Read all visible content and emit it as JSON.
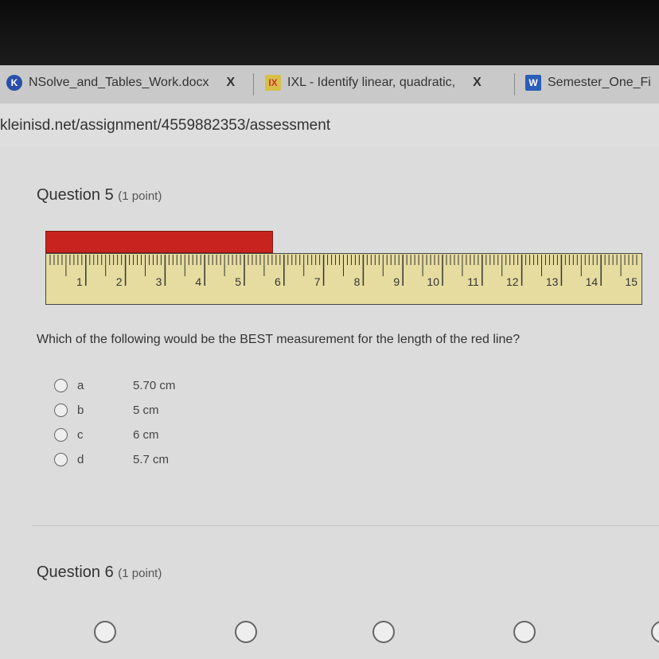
{
  "tabs": [
    {
      "title": "NSolve_and_Tables_Work.docx",
      "icon": "k-icon",
      "color": "#2a4fa8",
      "close": "X"
    },
    {
      "title": "IXL - Identify linear, quadratic,",
      "icon": "ixl-icon",
      "color": "#d8c048",
      "close": "X"
    },
    {
      "title": "Semester_One_Fi",
      "icon": "word-icon",
      "color": "#2b5eb8"
    }
  ],
  "address": "kleinisd.net/assignment/4559882353/assessment",
  "question5": {
    "title": "Question 5",
    "points": "(1 point)",
    "ruler_labels": [
      "1",
      "2",
      "3",
      "4",
      "5",
      "6",
      "7",
      "8",
      "9",
      "10",
      "11",
      "12",
      "13",
      "14",
      "15"
    ],
    "red_line_length_cm": 5.7,
    "prompt": "Which of the following would be the BEST measurement for the length of the red line?",
    "options": [
      {
        "letter": "a",
        "text": "5.70 cm"
      },
      {
        "letter": "b",
        "text": "5 cm"
      },
      {
        "letter": "c",
        "text": "6 cm"
      },
      {
        "letter": "d",
        "text": "5.7 cm"
      }
    ]
  },
  "question6": {
    "title": "Question 6",
    "points": "(1 point)"
  }
}
